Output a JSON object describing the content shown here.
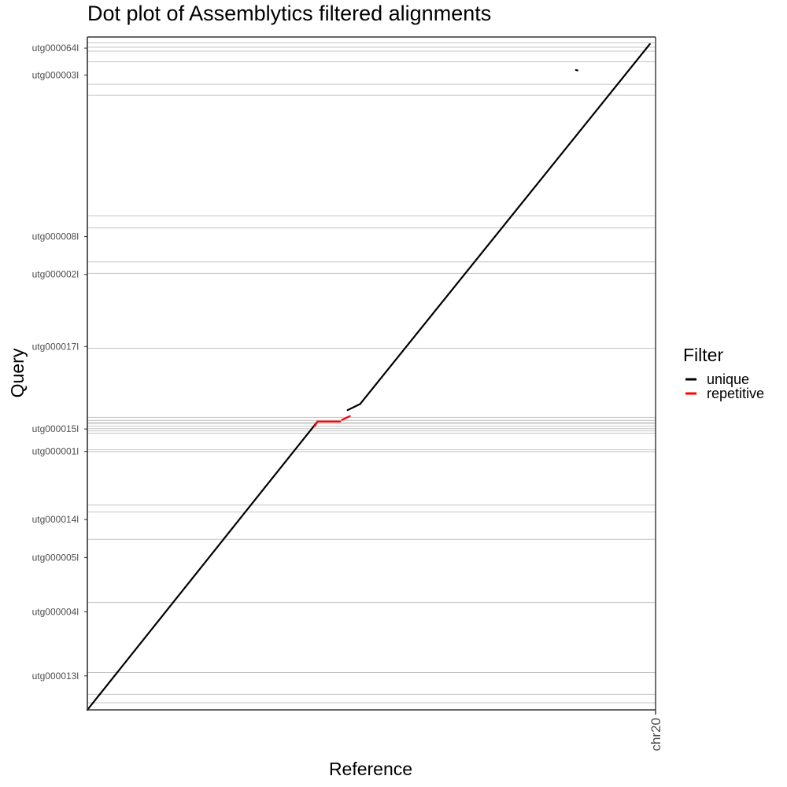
{
  "chart_data": {
    "type": "scatter",
    "title": "Dot plot of Assemblytics filtered alignments",
    "xlabel": "Reference",
    "ylabel": "Query",
    "x_categories": [
      "chr20"
    ],
    "y_categories": [
      "utg000013l",
      "utg000004l",
      "utg000005l",
      "utg000014l",
      "utg000001l",
      "utg000015l",
      "utg000017l",
      "utg000002l",
      "utg000008l",
      "utg000003l",
      "utg000064l"
    ],
    "xlim": [
      0,
      1
    ],
    "ylim": [
      0,
      1
    ],
    "grid": false,
    "contig_boundaries": [
      0.0105,
      0.023,
      0.0555,
      0.1595,
      0.2535,
      0.294,
      0.3044,
      0.3866,
      0.4303,
      0.4346,
      0.3838,
      0.4112,
      0.4146,
      0.4179,
      0.4218,
      0.4251,
      0.4273,
      0.43,
      0.5375,
      0.6487,
      0.6658,
      0.7162,
      0.7344,
      0.9133,
      0.9297,
      0.9631,
      0.9789,
      0.9848,
      0.9912
    ],
    "series": [
      {
        "name": "unique",
        "color": "#000000",
        "segments": [
          {
            "x": [
              0.0,
              0.405
            ],
            "y": [
              0.0,
              0.4285
            ]
          },
          {
            "x": [
              0.48,
              0.99
            ],
            "y": [
              0.4545,
              0.9895
            ]
          },
          {
            "x": [
              0.458,
              0.48
            ],
            "y": [
              0.4455,
              0.4545
            ]
          },
          {
            "x": [
              0.8598,
              0.8625
            ],
            "y": [
              0.9509,
              0.9503
            ]
          }
        ]
      },
      {
        "name": "repetitive",
        "color": "#ff0000",
        "segments": [
          {
            "x": [
              0.405,
              0.445
            ],
            "y": [
              0.4285,
              0.4285
            ]
          },
          {
            "x": [
              0.4,
              0.405
            ],
            "y": [
              0.4215,
              0.4285
            ]
          },
          {
            "x": [
              0.448,
              0.462
            ],
            "y": [
              0.431,
              0.4365
            ]
          }
        ]
      }
    ],
    "legend": {
      "title": "Filter",
      "position": "right",
      "entries": [
        {
          "label": "unique",
          "color": "#000000"
        },
        {
          "label": "repetitive",
          "color": "#ff0000"
        }
      ]
    }
  }
}
